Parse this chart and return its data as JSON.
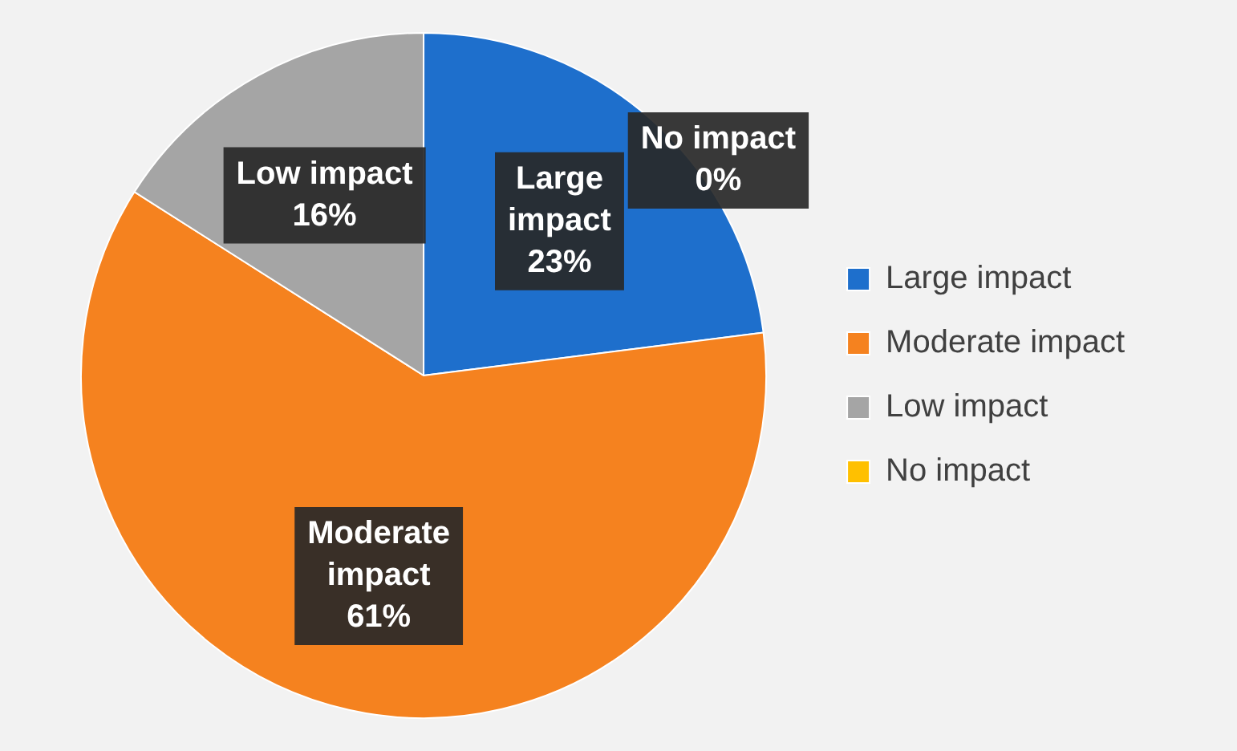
{
  "chart_data": {
    "type": "pie",
    "categories": [
      "Large impact",
      "Moderate impact",
      "Low impact",
      "No impact"
    ],
    "values": [
      23,
      61,
      16,
      0
    ],
    "colors": [
      "#1e6fcc",
      "#f5821f",
      "#a5a5a5",
      "#ffc000"
    ],
    "value_labels": [
      "23%",
      "61%",
      "16%",
      "0%"
    ],
    "legend": "right"
  }
}
